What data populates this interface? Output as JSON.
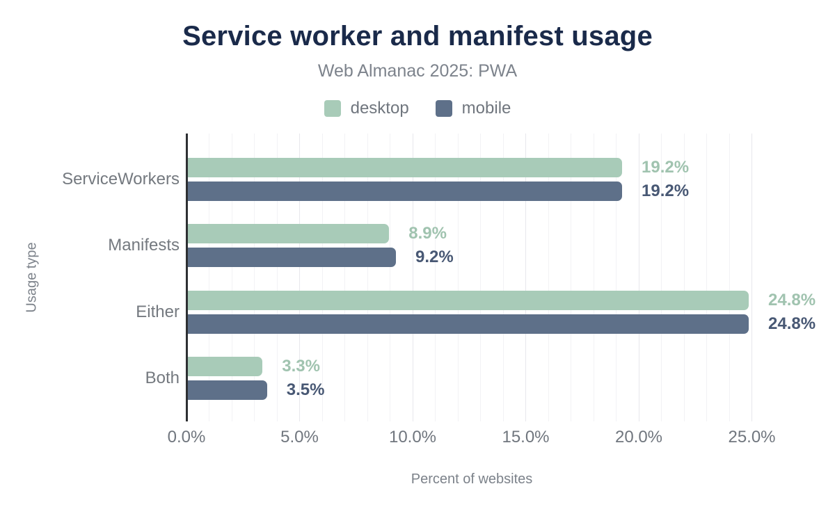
{
  "chart_data": {
    "type": "bar",
    "orientation": "horizontal",
    "title": "Service worker and manifest usage",
    "subtitle": "Web Almanac 2025: PWA",
    "xlabel": "Percent of websites",
    "ylabel": "Usage type",
    "categories": [
      "ServiceWorkers",
      "Manifests",
      "Either",
      "Both"
    ],
    "series": [
      {
        "name": "desktop",
        "color": "#a8cbb8",
        "label_color": "#a0c3af",
        "values": [
          19.2,
          8.9,
          24.8,
          3.3
        ],
        "labels": [
          "19.2%",
          "8.9%",
          "24.8%",
          "3.3%"
        ]
      },
      {
        "name": "mobile",
        "color": "#5e7089",
        "label_color": "#485874",
        "values": [
          19.2,
          9.2,
          24.8,
          3.5
        ],
        "labels": [
          "19.2%",
          "9.2%",
          "24.8%",
          "3.5%"
        ]
      }
    ],
    "xlim": [
      0,
      25
    ],
    "x_ticks": [
      "0.0%",
      "5.0%",
      "10.0%",
      "15.0%",
      "20.0%",
      "25.0%"
    ],
    "x_tick_values": [
      0,
      5,
      10,
      15,
      20,
      25
    ],
    "grid": "vertical minor gridlines every 1%, major every 5%",
    "legend_position": "top center"
  },
  "colors": {
    "title": "#1a2a4a",
    "subtitle": "#7d838c",
    "axis_line": "#2e3033",
    "gridline_minor": "#f2f2f5",
    "gridline_major": "#e7e7ec",
    "tick_text": "#70767e",
    "category_text": "#74797f",
    "axis_title_text": "#7c828a",
    "background": "#ffffff"
  }
}
